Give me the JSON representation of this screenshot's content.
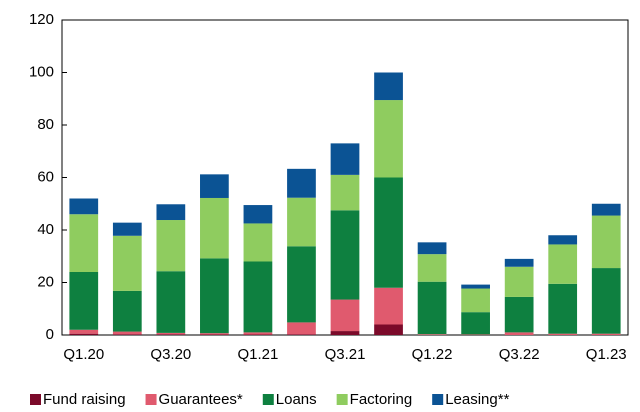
{
  "chart_data": {
    "type": "bar",
    "stacked": true,
    "categories": [
      "Q1.20",
      null,
      "Q3.20",
      null,
      "Q1.21",
      null,
      "Q3.21",
      null,
      "Q1.22",
      null,
      "Q3.22",
      null,
      "Q1.23"
    ],
    "series": [
      {
        "name": "Fund raising",
        "color": "#7b0a2a",
        "values": [
          0.5,
          0.3,
          0.3,
          0.2,
          0.2,
          0.3,
          1.5,
          4,
          0,
          0,
          0,
          0,
          0
        ]
      },
      {
        "name": "Guarantees*",
        "color": "#e05a6e",
        "values": [
          1.5,
          1,
          0.5,
          0.5,
          0.8,
          4.5,
          12,
          14,
          0.3,
          0.2,
          1,
          0.5,
          0.5
        ]
      },
      {
        "name": "Loans",
        "color": "#0e8040",
        "values": [
          22,
          15.5,
          23.5,
          28.5,
          27,
          29,
          34,
          42,
          20,
          8.5,
          13.5,
          19,
          25
        ]
      },
      {
        "name": "Factoring",
        "color": "#8fcc5f",
        "values": [
          22,
          21,
          19.5,
          23,
          14.5,
          18.5,
          13.5,
          29.5,
          10.5,
          9,
          11.5,
          15,
          20
        ]
      },
      {
        "name": "Leasing**",
        "color": "#0b5394",
        "values": [
          6,
          5,
          6,
          9,
          7,
          11,
          12,
          10.5,
          4.5,
          1.5,
          3,
          3.5,
          4.5
        ]
      }
    ],
    "ylim": [
      0,
      120
    ],
    "yticks": [
      0,
      20,
      40,
      60,
      80,
      100,
      120
    ],
    "grid": false,
    "legend": "bottom"
  }
}
